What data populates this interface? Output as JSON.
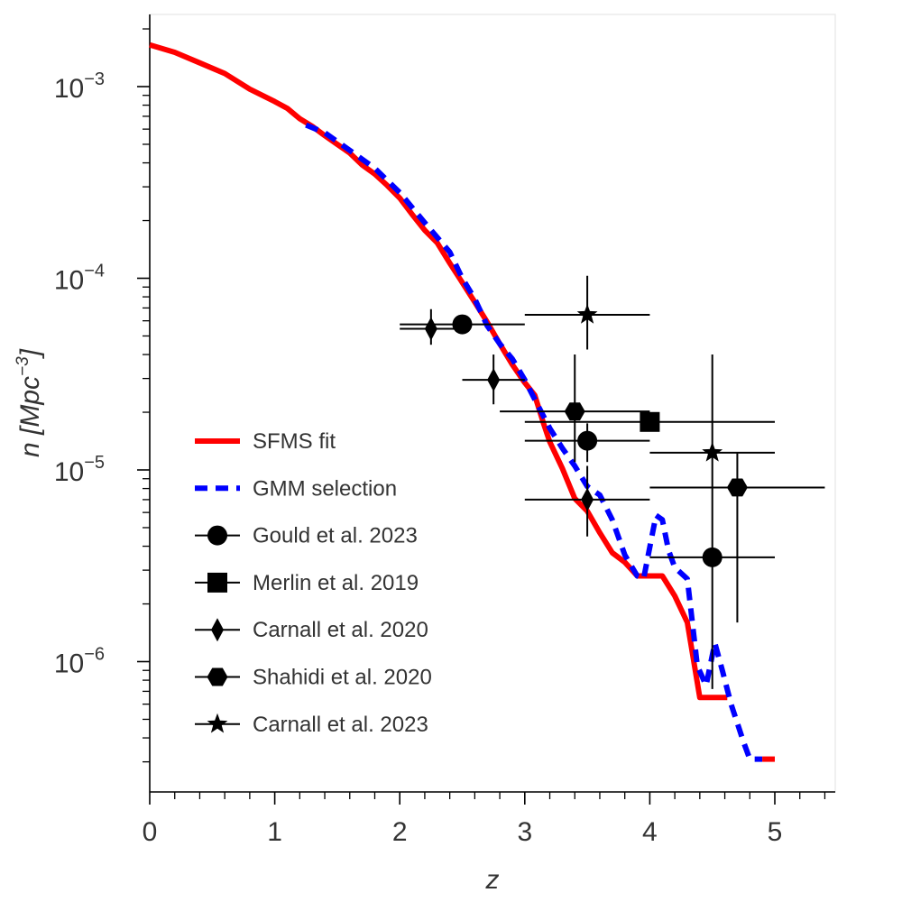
{
  "chart_data": {
    "type": "line",
    "xlabel": "z",
    "ylabel": "n [Mpc⁻³]",
    "ylabel_parts": {
      "var": "n",
      "open": "[Mpc",
      "exp": "−3",
      "close": "]"
    },
    "xlim": [
      0,
      5.5
    ],
    "ylim": [
      2.1e-07,
      0.0025
    ],
    "yscale": "log",
    "x_ticks": [
      0,
      1,
      2,
      3,
      4,
      5
    ],
    "x_tick_labels": [
      "0",
      "1",
      "2",
      "3",
      "4",
      "5"
    ],
    "y_ticks": [
      {
        "value": 0.001,
        "base": "10",
        "exp": "−3"
      },
      {
        "value": 0.0001,
        "base": "10",
        "exp": "−4"
      },
      {
        "value": 1e-05,
        "base": "10",
        "exp": "−5"
      },
      {
        "value": 1e-06,
        "base": "10",
        "exp": "−6"
      }
    ],
    "lines": [
      {
        "name": "SFMS fit",
        "color": "#ff0000",
        "style": "solid",
        "points": [
          [
            0,
            0.00165
          ],
          [
            0.2,
            0.00151
          ],
          [
            0.4,
            0.00133
          ],
          [
            0.6,
            0.00117
          ],
          [
            0.8,
            0.00097
          ],
          [
            1.0,
            0.000835
          ],
          [
            1.1,
            0.00077
          ],
          [
            1.2,
            0.00068
          ],
          [
            1.3,
            0.00062
          ],
          [
            1.4,
            0.000555
          ],
          [
            1.5,
            0.0005
          ],
          [
            1.6,
            0.00045
          ],
          [
            1.7,
            0.00039
          ],
          [
            1.8,
            0.00035
          ],
          [
            1.9,
            0.000305
          ],
          [
            2.0,
            0.000262
          ],
          [
            2.1,
            0.000215
          ],
          [
            2.2,
            0.000178
          ],
          [
            2.3,
            0.000153
          ],
          [
            2.4,
            0.00012
          ],
          [
            2.5,
            9.5e-05
          ],
          [
            2.6,
            7.5e-05
          ],
          [
            2.7,
            5.9e-05
          ],
          [
            2.8,
            4.55e-05
          ],
          [
            2.9,
            3.55e-05
          ],
          [
            3.0,
            2.85e-05
          ],
          [
            3.08,
            2.45e-05
          ],
          [
            3.15,
            1.75e-05
          ],
          [
            3.2,
            1.4e-05
          ],
          [
            3.3,
            1.02e-05
          ],
          [
            3.4,
            7.1e-06
          ],
          [
            3.5,
            6.1e-06
          ],
          [
            3.6,
            4.7e-06
          ],
          [
            3.7,
            3.7e-06
          ],
          [
            3.8,
            3.3e-06
          ],
          [
            3.9,
            2.8e-06
          ],
          [
            4.1,
            2.8e-06
          ],
          [
            4.2,
            2.2e-06
          ],
          [
            4.3,
            1.6e-06
          ],
          [
            4.4,
            6.5e-07
          ],
          [
            4.62,
            6.5e-07
          ]
        ],
        "extra_points": [
          [
            4.9,
            3.1e-07
          ],
          [
            5.0,
            3.1e-07
          ]
        ]
      },
      {
        "name": "GMM selection",
        "color": "#0000ff",
        "style": "dashed",
        "points": [
          [
            1.25,
            0.00063
          ],
          [
            1.4,
            0.000575
          ],
          [
            1.6,
            0.000465
          ],
          [
            1.8,
            0.000375
          ],
          [
            2.0,
            0.00028
          ],
          [
            2.2,
            0.000195
          ],
          [
            2.4,
            0.000137
          ],
          [
            2.5,
            0.0001
          ],
          [
            2.6,
            7.8e-05
          ],
          [
            2.7,
            5.65e-05
          ],
          [
            2.8,
            4.55e-05
          ],
          [
            2.9,
            3.8e-05
          ],
          [
            3.0,
            2.95e-05
          ],
          [
            3.1,
            2.2e-05
          ],
          [
            3.2,
            1.65e-05
          ],
          [
            3.3,
            1.3e-05
          ],
          [
            3.4,
            1.05e-05
          ],
          [
            3.5,
            8.2e-06
          ],
          [
            3.6,
            7.4e-06
          ],
          [
            3.7,
            5.5e-06
          ],
          [
            3.8,
            3.6e-06
          ],
          [
            3.9,
            2.8e-06
          ],
          [
            3.95,
            2.7e-06
          ],
          [
            4.05,
            5.8e-06
          ],
          [
            4.1,
            5.5e-06
          ],
          [
            4.15,
            3.8e-06
          ],
          [
            4.2,
            3.1e-06
          ],
          [
            4.3,
            2.7e-06
          ],
          [
            4.38,
            9.5e-07
          ],
          [
            4.45,
            7.5e-07
          ],
          [
            4.52,
            1.25e-06
          ],
          [
            4.58,
            9e-07
          ],
          [
            4.65,
            6e-07
          ],
          [
            4.75,
            3.8e-07
          ],
          [
            4.8,
            3.1e-07
          ],
          [
            4.9,
            3.1e-07
          ]
        ]
      }
    ],
    "points": [
      {
        "series": "Gould et al. 2023",
        "marker": "circle",
        "x": 2.5,
        "y": 5.75e-05,
        "xerr": [
          2.0,
          3.0
        ],
        "yerr": null
      },
      {
        "series": "Gould et al. 2023",
        "marker": "circle",
        "x": 3.5,
        "y": 1.42e-05,
        "xerr": [
          3.0,
          4.0
        ],
        "yerr": [
          1.1e-05,
          1.75e-05
        ]
      },
      {
        "series": "Gould et al. 2023",
        "marker": "circle",
        "x": 4.5,
        "y": 3.5e-06,
        "xerr": [
          4.0,
          5.0
        ],
        "yerr": null
      },
      {
        "series": "Merlin et al. 2019",
        "marker": "square",
        "x": 4.0,
        "y": 1.78e-05,
        "xerr": [
          3.0,
          5.0
        ],
        "yerr": null
      },
      {
        "series": "Carnall et al. 2020",
        "marker": "diamond",
        "x": 2.25,
        "y": 5.45e-05,
        "xerr": [
          2.0,
          2.5
        ],
        "yerr": [
          4.5e-05,
          6.9e-05
        ]
      },
      {
        "series": "Carnall et al. 2020",
        "marker": "diamond",
        "x": 2.75,
        "y": 2.95e-05,
        "xerr": [
          2.5,
          3.0
        ],
        "yerr": [
          2.2e-05,
          4e-05
        ]
      },
      {
        "series": "Carnall et al. 2020",
        "marker": "diamond",
        "x": 3.5,
        "y": 7e-06,
        "xerr": [
          3.0,
          4.0
        ],
        "yerr": [
          4.5e-06,
          1.05e-05
        ]
      },
      {
        "series": "Shahidi et al. 2020",
        "marker": "hexagon",
        "x": 3.4,
        "y": 2.02e-05,
        "xerr": [
          2.8,
          4.0
        ],
        "yerr": [
          1.1e-05,
          4e-05
        ]
      },
      {
        "series": "Shahidi et al. 2020",
        "marker": "hexagon",
        "x": 4.7,
        "y": 8.1e-06,
        "xerr": [
          4.0,
          5.4
        ],
        "yerr": [
          1.6e-06,
          1.22e-05
        ]
      },
      {
        "series": "Carnall et al. 2023",
        "marker": "star",
        "x": 3.5,
        "y": 6.45e-05,
        "xerr": [
          3.0,
          4.0
        ],
        "yerr": [
          4.25e-05,
          0.000103
        ]
      },
      {
        "series": "Carnall et al. 2023",
        "marker": "star",
        "x": 4.5,
        "y": 1.23e-05,
        "xerr": [
          4.0,
          5.0
        ],
        "yerr": [
          7.2e-07,
          4e-05
        ]
      }
    ],
    "legend": {
      "position": "lower-left",
      "entries": [
        {
          "label": "SFMS fit",
          "kind": "line",
          "color": "#ff0000",
          "style": "solid"
        },
        {
          "label": "GMM selection",
          "kind": "line",
          "color": "#0000ff",
          "style": "dashed"
        },
        {
          "label": "Gould et al. 2023",
          "kind": "marker",
          "marker": "circle"
        },
        {
          "label": "Merlin et al. 2019",
          "kind": "marker",
          "marker": "square"
        },
        {
          "label": "Carnall et al. 2020",
          "kind": "marker",
          "marker": "diamond"
        },
        {
          "label": "Shahidi et al. 2020",
          "kind": "marker",
          "marker": "hexagon"
        },
        {
          "label": "Carnall et al. 2023",
          "kind": "marker",
          "marker": "star"
        }
      ]
    }
  }
}
